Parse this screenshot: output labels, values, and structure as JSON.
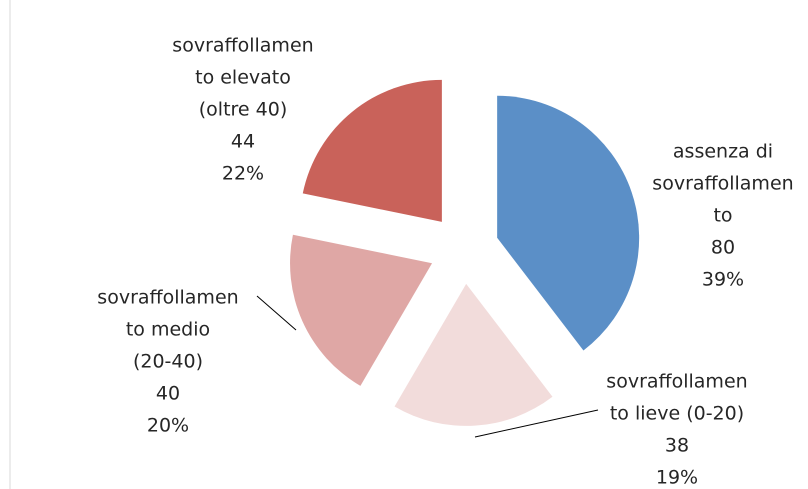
{
  "chart_data": {
    "type": "pie",
    "categories": [
      [
        "assenza di",
        "sovraffollamen",
        "to"
      ],
      [
        "sovraffollamen",
        "to lieve (0-20)"
      ],
      [
        "sovraffollamen",
        "to  medio",
        "(20-40)"
      ],
      [
        "sovraffollamen",
        "to elevato",
        "(oltre 40)"
      ]
    ],
    "values": [
      80,
      38,
      40,
      44
    ],
    "percent_labels": [
      "39%",
      "19%",
      "20%",
      "22%"
    ],
    "colors": [
      "#5b8fc7",
      "#f2dcdb",
      "#dfa7a5",
      "#c9625a"
    ]
  }
}
